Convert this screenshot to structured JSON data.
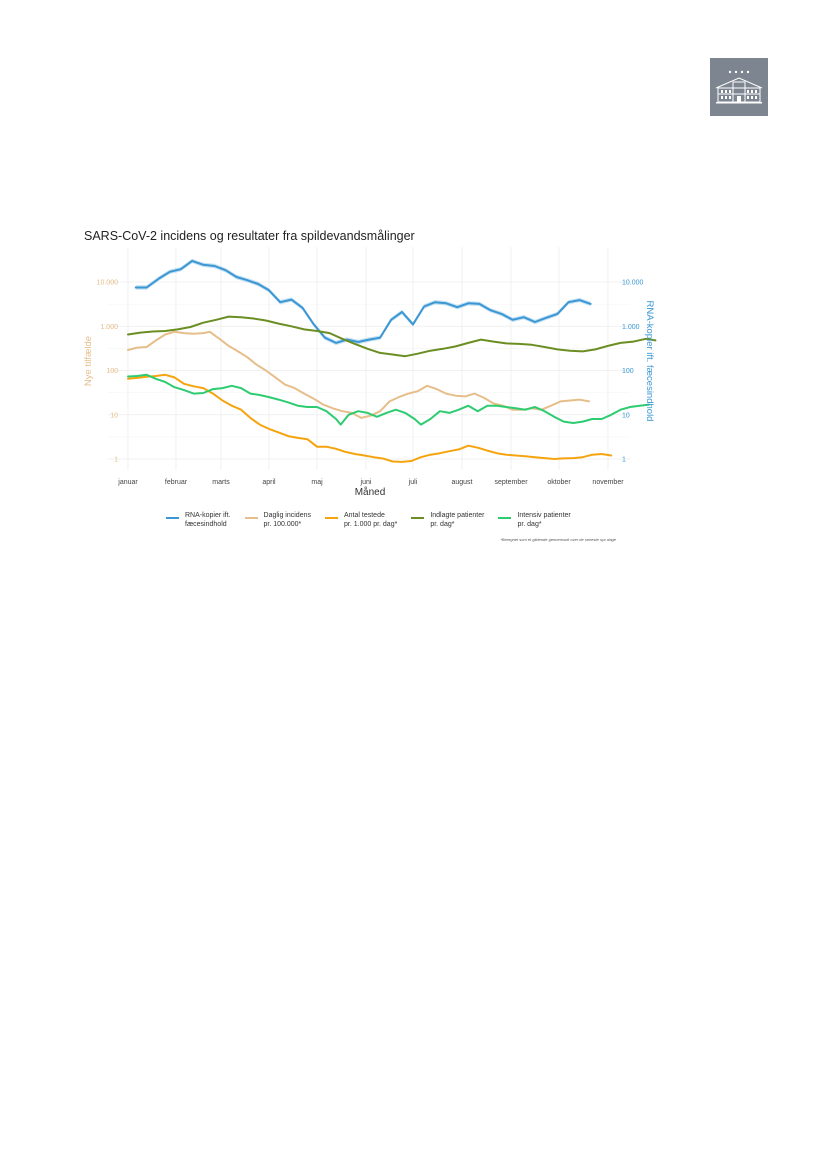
{
  "page": {
    "background": "#ffffff"
  },
  "logo": {
    "icon": "manor-building-icon",
    "background": "#7c8590"
  },
  "chart_data": {
    "type": "line",
    "title": "SARS-CoV-2 incidens og resultater fra spildevandsmålinger",
    "xlabel": "Måned",
    "ylabel_left": "Nye tilfælde",
    "ylabel_right": "RNA-kopier ift. fæcesindhold",
    "x_ticks": [
      "januar",
      "februar",
      "marts",
      "april",
      "maj",
      "juni",
      "juli",
      "august",
      "september",
      "oktober",
      "november"
    ],
    "x_domain_days": [
      0,
      310
    ],
    "y_scale": "log10",
    "ylim_left": [
      0.7,
      30000
    ],
    "left_ticks": [
      {
        "value": 1,
        "label": "1"
      },
      {
        "value": 10,
        "label": "10"
      },
      {
        "value": 100,
        "label": "100"
      },
      {
        "value": 1000,
        "label": "1.000"
      },
      {
        "value": 10000,
        "label": "10.000"
      }
    ],
    "right_ticks": [
      {
        "value": 1,
        "label": "1"
      },
      {
        "value": 10,
        "label": "10"
      },
      {
        "value": 100,
        "label": "100"
      },
      {
        "value": 1000,
        "label": "1.000"
      },
      {
        "value": 10000,
        "label": "10.000"
      }
    ],
    "grid": true,
    "legend_position": "bottom",
    "footnote": "*Beregnet som et glidende gennemsnit over de seneste syv dage",
    "series": [
      {
        "key": "rna",
        "name": "RNA-kopier ift.\nfæcesindhold",
        "color": "#3a97d4",
        "band": true,
        "points": [
          [
            5,
            7500
          ],
          [
            12,
            7500
          ],
          [
            20,
            12000
          ],
          [
            27,
            17000
          ],
          [
            34,
            19500
          ],
          [
            41,
            30000
          ],
          [
            48,
            24500
          ],
          [
            55,
            23000
          ],
          [
            62,
            18500
          ],
          [
            69,
            13000
          ],
          [
            76,
            11000
          ],
          [
            83,
            9000
          ],
          [
            90,
            6500
          ],
          [
            97,
            3500
          ],
          [
            104,
            4000
          ],
          [
            111,
            2600
          ],
          [
            118,
            1100
          ],
          [
            125,
            550
          ],
          [
            132,
            420
          ],
          [
            139,
            500
          ],
          [
            146,
            440
          ],
          [
            153,
            500
          ],
          [
            160,
            550
          ],
          [
            167,
            1400
          ],
          [
            174,
            2100
          ],
          [
            181,
            1100
          ],
          [
            188,
            2800
          ],
          [
            195,
            3500
          ],
          [
            202,
            3300
          ],
          [
            209,
            2700
          ],
          [
            216,
            3300
          ],
          [
            223,
            3200
          ],
          [
            230,
            2300
          ],
          [
            237,
            1900
          ],
          [
            244,
            1400
          ],
          [
            251,
            1600
          ],
          [
            258,
            1250
          ],
          [
            265,
            1550
          ],
          [
            272,
            1900
          ],
          [
            279,
            3500
          ],
          [
            286,
            3900
          ],
          [
            293,
            3200
          ]
        ]
      },
      {
        "key": "incidens",
        "name": "Daglig incidens\npr. 100.000*",
        "color": "#e6be8a",
        "band": false,
        "points": [
          [
            0,
            290
          ],
          [
            6,
            330
          ],
          [
            12,
            340
          ],
          [
            18,
            480
          ],
          [
            24,
            650
          ],
          [
            30,
            750
          ],
          [
            36,
            700
          ],
          [
            42,
            680
          ],
          [
            48,
            700
          ],
          [
            52,
            750
          ],
          [
            58,
            520
          ],
          [
            64,
            360
          ],
          [
            70,
            270
          ],
          [
            76,
            200
          ],
          [
            82,
            135
          ],
          [
            88,
            100
          ],
          [
            94,
            70
          ],
          [
            100,
            48
          ],
          [
            106,
            40
          ],
          [
            112,
            30
          ],
          [
            118,
            23
          ],
          [
            124,
            17
          ],
          [
            130,
            14
          ],
          [
            136,
            12
          ],
          [
            142,
            11
          ],
          [
            148,
            8.5
          ],
          [
            154,
            9.5
          ],
          [
            160,
            12
          ],
          [
            166,
            20
          ],
          [
            172,
            25
          ],
          [
            178,
            30
          ],
          [
            184,
            34
          ],
          [
            190,
            45
          ],
          [
            196,
            38
          ],
          [
            202,
            30
          ],
          [
            208,
            27
          ],
          [
            214,
            26
          ],
          [
            220,
            30
          ],
          [
            226,
            24
          ],
          [
            232,
            18
          ],
          [
            238,
            16
          ],
          [
            244,
            13
          ],
          [
            250,
            13
          ],
          [
            256,
            14
          ],
          [
            262,
            13
          ],
          [
            268,
            16
          ],
          [
            274,
            20
          ],
          [
            280,
            21
          ],
          [
            286,
            22
          ],
          [
            292,
            20
          ]
        ]
      },
      {
        "key": "testede",
        "name": "Antal testede\npr. 1.000 pr. dag*",
        "color": "#f5a40e",
        "band": false,
        "points": [
          [
            0,
            65
          ],
          [
            6,
            68
          ],
          [
            12,
            72
          ],
          [
            18,
            75
          ],
          [
            24,
            80
          ],
          [
            30,
            70
          ],
          [
            36,
            50
          ],
          [
            42,
            44
          ],
          [
            48,
            40
          ],
          [
            54,
            30
          ],
          [
            60,
            21
          ],
          [
            66,
            16
          ],
          [
            72,
            13
          ],
          [
            78,
            8.5
          ],
          [
            84,
            6
          ],
          [
            90,
            4.8
          ],
          [
            96,
            4
          ],
          [
            102,
            3.3
          ],
          [
            108,
            3
          ],
          [
            114,
            2.8
          ],
          [
            120,
            1.9
          ],
          [
            126,
            1.9
          ],
          [
            132,
            1.7
          ],
          [
            138,
            1.45
          ],
          [
            144,
            1.3
          ],
          [
            150,
            1.2
          ],
          [
            156,
            1.1
          ],
          [
            162,
            1.02
          ],
          [
            168,
            0.88
          ],
          [
            174,
            0.86
          ],
          [
            180,
            0.9
          ],
          [
            186,
            1.1
          ],
          [
            192,
            1.25
          ],
          [
            198,
            1.35
          ],
          [
            204,
            1.5
          ],
          [
            210,
            1.65
          ],
          [
            216,
            2
          ],
          [
            222,
            1.8
          ],
          [
            228,
            1.55
          ],
          [
            234,
            1.35
          ],
          [
            240,
            1.25
          ],
          [
            246,
            1.2
          ],
          [
            252,
            1.15
          ],
          [
            258,
            1.1
          ],
          [
            264,
            1.05
          ],
          [
            270,
            1.0
          ],
          [
            276,
            1.03
          ],
          [
            282,
            1.05
          ],
          [
            288,
            1.1
          ],
          [
            294,
            1.25
          ],
          [
            300,
            1.3
          ],
          [
            306,
            1.2
          ]
        ]
      },
      {
        "key": "indlagte",
        "name": "Indlagte patienter\npr. dag*",
        "color": "#6b8e23",
        "band": false,
        "points": [
          [
            0,
            650
          ],
          [
            8,
            720
          ],
          [
            16,
            760
          ],
          [
            24,
            780
          ],
          [
            32,
            850
          ],
          [
            40,
            960
          ],
          [
            48,
            1200
          ],
          [
            56,
            1400
          ],
          [
            64,
            1650
          ],
          [
            72,
            1600
          ],
          [
            80,
            1500
          ],
          [
            88,
            1350
          ],
          [
            96,
            1150
          ],
          [
            104,
            1000
          ],
          [
            112,
            850
          ],
          [
            120,
            780
          ],
          [
            128,
            700
          ],
          [
            136,
            520
          ],
          [
            144,
            400
          ],
          [
            152,
            310
          ],
          [
            160,
            250
          ],
          [
            168,
            230
          ],
          [
            176,
            210
          ],
          [
            184,
            240
          ],
          [
            192,
            280
          ],
          [
            200,
            310
          ],
          [
            208,
            350
          ],
          [
            216,
            420
          ],
          [
            224,
            500
          ],
          [
            232,
            450
          ],
          [
            240,
            410
          ],
          [
            248,
            400
          ],
          [
            256,
            380
          ],
          [
            264,
            340
          ],
          [
            272,
            300
          ],
          [
            280,
            280
          ],
          [
            288,
            270
          ],
          [
            296,
            300
          ],
          [
            304,
            360
          ],
          [
            312,
            420
          ],
          [
            320,
            450
          ],
          [
            328,
            520
          ],
          [
            334,
            480
          ]
        ]
      },
      {
        "key": "intensiv",
        "name": "Intensiv patienter\npr. dag*",
        "color": "#2ecc71",
        "band": false,
        "points": [
          [
            0,
            73
          ],
          [
            6,
            75
          ],
          [
            12,
            80
          ],
          [
            18,
            65
          ],
          [
            24,
            55
          ],
          [
            30,
            42
          ],
          [
            36,
            36
          ],
          [
            42,
            30
          ],
          [
            48,
            31
          ],
          [
            54,
            38
          ],
          [
            60,
            40
          ],
          [
            66,
            45
          ],
          [
            72,
            40
          ],
          [
            78,
            30
          ],
          [
            84,
            28
          ],
          [
            90,
            25
          ],
          [
            96,
            22
          ],
          [
            102,
            19
          ],
          [
            108,
            16
          ],
          [
            114,
            15
          ],
          [
            120,
            15
          ],
          [
            126,
            12
          ],
          [
            132,
            8
          ],
          [
            135,
            6
          ],
          [
            140,
            10
          ],
          [
            146,
            12
          ],
          [
            152,
            11
          ],
          [
            158,
            9
          ],
          [
            164,
            11
          ],
          [
            170,
            13
          ],
          [
            176,
            11
          ],
          [
            182,
            8
          ],
          [
            186,
            6
          ],
          [
            192,
            8
          ],
          [
            198,
            12
          ],
          [
            204,
            11
          ],
          [
            210,
            13
          ],
          [
            216,
            16
          ],
          [
            222,
            12
          ],
          [
            228,
            16
          ],
          [
            234,
            16
          ],
          [
            240,
            15
          ],
          [
            246,
            14
          ],
          [
            252,
            13
          ],
          [
            258,
            15
          ],
          [
            264,
            12
          ],
          [
            270,
            9
          ],
          [
            276,
            7
          ],
          [
            282,
            6.5
          ],
          [
            288,
            7
          ],
          [
            294,
            8
          ],
          [
            300,
            8
          ],
          [
            306,
            10
          ],
          [
            312,
            13
          ],
          [
            318,
            15
          ],
          [
            324,
            16
          ],
          [
            330,
            17
          ]
        ]
      }
    ]
  }
}
